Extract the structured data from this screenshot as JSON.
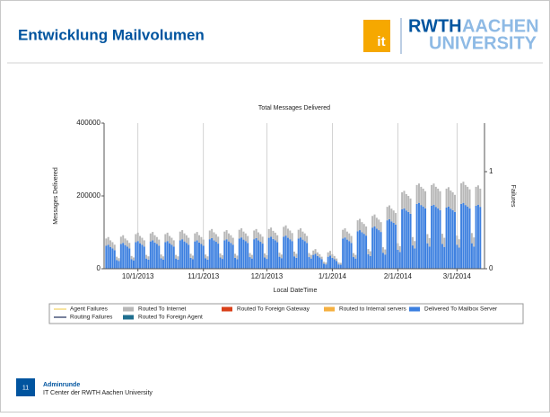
{
  "header": {
    "title": "Entwicklung Mailvolumen",
    "logo": {
      "it": "it",
      "rwth": "RWTH",
      "aachen": "AACHEN",
      "university": "UNIVERSITY"
    }
  },
  "footer": {
    "page": "11",
    "title": "Adminrunde",
    "subtitle": "IT Center der RWTH Aachen University"
  },
  "chart_data": {
    "type": "bar",
    "stacked": true,
    "title": "Total Messages Delivered",
    "x_label": "Local DateTime",
    "y_label": "Messages Delivered",
    "y2_label": "Failures",
    "xlim": [
      "2013-09-15",
      "2014-03-14"
    ],
    "xticks": [
      {
        "value": "2013-10-01",
        "label": "10/1/2013"
      },
      {
        "value": "2013-11-01",
        "label": "11/1/2013"
      },
      {
        "value": "2013-12-01",
        "label": "12/1/2013"
      },
      {
        "value": "2014-01-01",
        "label": "1/1/2014"
      },
      {
        "value": "2014-02-01",
        "label": "2/1/2014"
      },
      {
        "value": "2014-03-01",
        "label": "3/1/2014"
      }
    ],
    "ylim": [
      0,
      400000
    ],
    "yticks": [
      0,
      200000,
      400000
    ],
    "y2lim": [
      0,
      1.5
    ],
    "y2ticks": [
      0,
      1
    ],
    "grid": "x",
    "x": [
      "2013-09-16",
      "2013-09-17",
      "2013-09-18",
      "2013-09-19",
      "2013-09-20",
      "2013-09-21",
      "2013-09-22",
      "2013-09-23",
      "2013-09-24",
      "2013-09-25",
      "2013-09-26",
      "2013-09-27",
      "2013-09-28",
      "2013-09-29",
      "2013-09-30",
      "2013-10-01",
      "2013-10-02",
      "2013-10-03",
      "2013-10-04",
      "2013-10-05",
      "2013-10-06",
      "2013-10-07",
      "2013-10-08",
      "2013-10-09",
      "2013-10-10",
      "2013-10-11",
      "2013-10-12",
      "2013-10-13",
      "2013-10-14",
      "2013-10-15",
      "2013-10-16",
      "2013-10-17",
      "2013-10-18",
      "2013-10-19",
      "2013-10-20",
      "2013-10-21",
      "2013-10-22",
      "2013-10-23",
      "2013-10-24",
      "2013-10-25",
      "2013-10-26",
      "2013-10-27",
      "2013-10-28",
      "2013-10-29",
      "2013-10-30",
      "2013-10-31",
      "2013-11-01",
      "2013-11-02",
      "2013-11-03",
      "2013-11-04",
      "2013-11-05",
      "2013-11-06",
      "2013-11-07",
      "2013-11-08",
      "2013-11-09",
      "2013-11-10",
      "2013-11-11",
      "2013-11-12",
      "2013-11-13",
      "2013-11-14",
      "2013-11-15",
      "2013-11-16",
      "2013-11-17",
      "2013-11-18",
      "2013-11-19",
      "2013-11-20",
      "2013-11-21",
      "2013-11-22",
      "2013-11-23",
      "2013-11-24",
      "2013-11-25",
      "2013-11-26",
      "2013-11-27",
      "2013-11-28",
      "2013-11-29",
      "2013-11-30",
      "2013-12-01",
      "2013-12-02",
      "2013-12-03",
      "2013-12-04",
      "2013-12-05",
      "2013-12-06",
      "2013-12-07",
      "2013-12-08",
      "2013-12-09",
      "2013-12-10",
      "2013-12-11",
      "2013-12-12",
      "2013-12-13",
      "2013-12-14",
      "2013-12-15",
      "2013-12-16",
      "2013-12-17",
      "2013-12-18",
      "2013-12-19",
      "2013-12-20",
      "2013-12-21",
      "2013-12-22",
      "2013-12-23",
      "2013-12-24",
      "2013-12-25",
      "2013-12-26",
      "2013-12-27",
      "2013-12-28",
      "2013-12-29",
      "2013-12-30",
      "2013-12-31",
      "2014-01-01",
      "2014-01-02",
      "2014-01-03",
      "2014-01-04",
      "2014-01-05",
      "2014-01-06",
      "2014-01-07",
      "2014-01-08",
      "2014-01-09",
      "2014-01-10",
      "2014-01-11",
      "2014-01-12",
      "2014-01-13",
      "2014-01-14",
      "2014-01-15",
      "2014-01-16",
      "2014-01-17",
      "2014-01-18",
      "2014-01-19",
      "2014-01-20",
      "2014-01-21",
      "2014-01-22",
      "2014-01-23",
      "2014-01-24",
      "2014-01-25",
      "2014-01-26",
      "2014-01-27",
      "2014-01-28",
      "2014-01-29",
      "2014-01-30",
      "2014-01-31",
      "2014-02-01",
      "2014-02-02",
      "2014-02-03",
      "2014-02-04",
      "2014-02-05",
      "2014-02-06",
      "2014-02-07",
      "2014-02-08",
      "2014-02-09",
      "2014-02-10",
      "2014-02-11",
      "2014-02-12",
      "2014-02-13",
      "2014-02-14",
      "2014-02-15",
      "2014-02-16",
      "2014-02-17",
      "2014-02-18",
      "2014-02-19",
      "2014-02-20",
      "2014-02-21",
      "2014-02-22",
      "2014-02-23",
      "2014-02-24",
      "2014-02-25",
      "2014-02-26",
      "2014-02-27",
      "2014-02-28",
      "2014-03-01",
      "2014-03-02",
      "2014-03-03",
      "2014-03-04",
      "2014-03-05",
      "2014-03-06",
      "2014-03-07",
      "2014-03-08",
      "2014-03-09",
      "2014-03-10",
      "2014-03-11",
      "2014-03-12"
    ],
    "series": [
      {
        "name": "Agent Failures",
        "color": "#f0d060",
        "axis": "y2"
      },
      {
        "name": "Routing Failures",
        "color": "#1f2e5a",
        "axis": "y2"
      },
      {
        "name": "Routed To Internet",
        "color": "#b8b8b8",
        "values": [
          20000,
          21000,
          18000,
          17000,
          15000,
          9000,
          8000,
          20000,
          21000,
          18000,
          17000,
          15000,
          9000,
          8000,
          22000,
          23000,
          20000,
          19000,
          17000,
          10000,
          9000,
          22000,
          23000,
          20000,
          19000,
          17000,
          10000,
          9000,
          22000,
          23000,
          20000,
          19000,
          17000,
          10000,
          9000,
          24000,
          25000,
          22000,
          21000,
          19000,
          11000,
          10000,
          22000,
          23000,
          20000,
          19000,
          17000,
          10000,
          9000,
          24000,
          25000,
          22000,
          21000,
          19000,
          11000,
          10000,
          24000,
          25000,
          22000,
          21000,
          19000,
          11000,
          10000,
          24000,
          25000,
          22000,
          21000,
          19000,
          11000,
          10000,
          24000,
          25000,
          22000,
          21000,
          19000,
          11000,
          10000,
          24000,
          25000,
          22000,
          21000,
          19000,
          11000,
          10000,
          27000,
          28000,
          25000,
          24000,
          22000,
          13000,
          11000,
          24000,
          25000,
          22000,
          21000,
          19000,
          11000,
          10000,
          12000,
          13000,
          10000,
          9000,
          7000,
          5000,
          5000,
          12000,
          13000,
          10000,
          9000,
          7000,
          5000,
          5000,
          24000,
          25000,
          22000,
          21000,
          19000,
          11000,
          10000,
          30000,
          31000,
          28000,
          27000,
          25000,
          14000,
          13000,
          32000,
          33000,
          30000,
          29000,
          27000,
          15000,
          14000,
          37000,
          38000,
          35000,
          34000,
          32000,
          18000,
          16000,
          47000,
          48000,
          45000,
          44000,
          42000,
          23000,
          20000,
          52000,
          53000,
          50000,
          49000,
          47000,
          25000,
          23000,
          57000,
          58000,
          55000,
          54000,
          52000,
          28000,
          25000,
          52000,
          53000,
          50000,
          49000,
          47000,
          25000,
          23000,
          57000,
          58000,
          55000,
          54000,
          52000,
          28000,
          25000,
          52000,
          53000,
          50000
        ]
      },
      {
        "name": "Routed To Foreign Agent",
        "color": "#1f6f8f"
      },
      {
        "name": "Routed To Foreign Gateway",
        "color": "#d9401a"
      },
      {
        "name": "Routed to Internal servers",
        "color": "#f5b041"
      },
      {
        "name": "Delivered To Mailbox Server",
        "color": "#3d80e0",
        "values": [
          63000,
          66000,
          60000,
          56000,
          51000,
          24000,
          21000,
          68000,
          71000,
          65000,
          61000,
          56000,
          26000,
          23000,
          73000,
          76000,
          70000,
          66000,
          61000,
          28000,
          25000,
          75000,
          78000,
          72000,
          68000,
          63000,
          29000,
          25000,
          73000,
          76000,
          70000,
          66000,
          61000,
          28000,
          25000,
          78000,
          81000,
          75000,
          71000,
          66000,
          30000,
          26000,
          75000,
          78000,
          72000,
          68000,
          63000,
          29000,
          25000,
          81000,
          84000,
          78000,
          74000,
          69000,
          31000,
          27000,
          78000,
          81000,
          75000,
          71000,
          66000,
          30000,
          26000,
          83000,
          86000,
          80000,
          76000,
          71000,
          32000,
          28000,
          81000,
          84000,
          78000,
          74000,
          69000,
          31000,
          27000,
          85000,
          88000,
          82000,
          78000,
          73000,
          33000,
          29000,
          88000,
          91000,
          85000,
          81000,
          76000,
          34000,
          30000,
          83000,
          86000,
          80000,
          76000,
          71000,
          32000,
          28000,
          38000,
          41000,
          35000,
          31000,
          26000,
          14000,
          12000,
          33000,
          36000,
          30000,
          26000,
          21000,
          12000,
          11000,
          83000,
          86000,
          80000,
          76000,
          71000,
          32000,
          28000,
          103000,
          106000,
          100000,
          96000,
          91000,
          40000,
          35000,
          113000,
          116000,
          110000,
          106000,
          101000,
          44000,
          39000,
          133000,
          136000,
          130000,
          126000,
          121000,
          52000,
          46000,
          163000,
          166000,
          160000,
          156000,
          151000,
          64000,
          56000,
          178000,
          181000,
          175000,
          171000,
          166000,
          70000,
          61000,
          173000,
          176000,
          170000,
          166000,
          161000,
          68000,
          60000,
          168000,
          171000,
          165000,
          161000,
          156000,
          66000,
          58000,
          178000,
          181000,
          175000,
          171000,
          166000,
          70000,
          61000,
          173000,
          176000,
          170000
        ]
      }
    ]
  }
}
